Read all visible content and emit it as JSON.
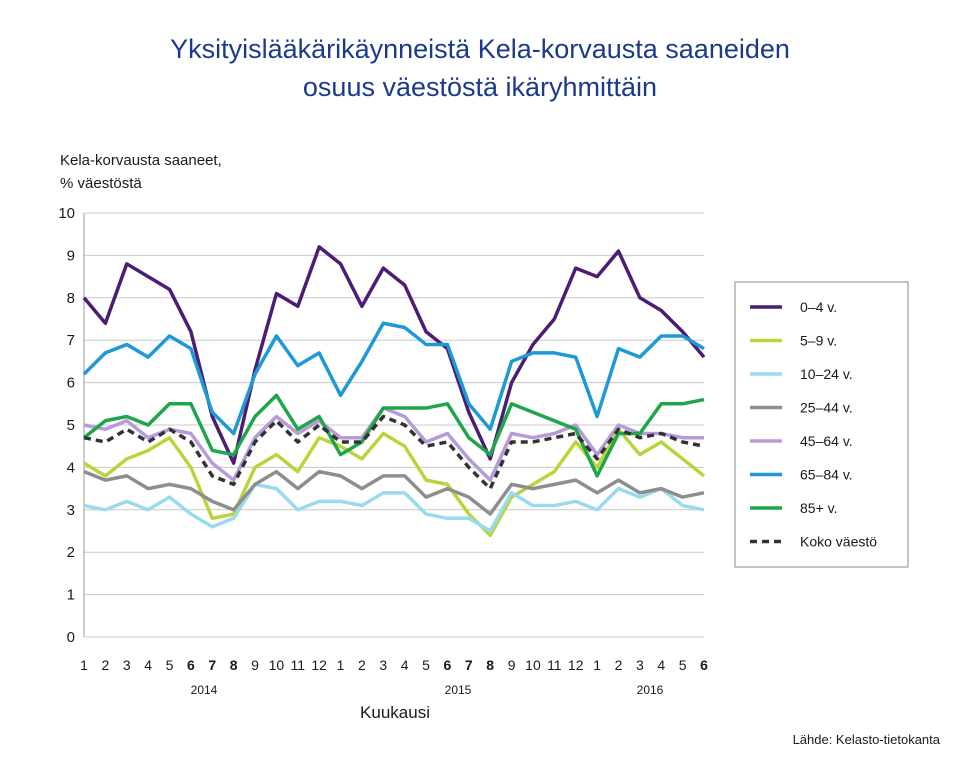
{
  "chart_data": {
    "type": "line",
    "title": [
      "Yksityislääkärikäynneistä Kela-korvausta saaneiden",
      "osuus väestöstä ikäryhmittäin"
    ],
    "y_label": [
      "Kela-korvausta saaneet,",
      "% väestöstä"
    ],
    "x_label": "Kuukausi",
    "source": "Lähde: Kelasto-tietokanta",
    "year_labels": [
      "2014",
      "2015",
      "2016"
    ],
    "categories": [
      "1",
      "2",
      "3",
      "4",
      "5",
      "6",
      "7",
      "8",
      "9",
      "10",
      "11",
      "12",
      "1",
      "2",
      "3",
      "4",
      "5",
      "6",
      "7",
      "8",
      "9",
      "10",
      "11",
      "12",
      "1",
      "2",
      "3",
      "4",
      "5",
      "6"
    ],
    "ylim": [
      0,
      10
    ],
    "yticks": [
      0,
      1,
      2,
      3,
      4,
      5,
      6,
      7,
      8,
      9,
      10
    ],
    "grid": true,
    "series": [
      {
        "name": "0–4 v.",
        "color": "#4b1d74",
        "values": [
          8.0,
          7.4,
          8.8,
          8.5,
          8.2,
          7.2,
          5.2,
          4.1,
          6.3,
          8.1,
          7.8,
          9.2,
          8.8,
          7.8,
          8.7,
          8.3,
          7.2,
          6.8,
          5.3,
          4.2,
          6.0,
          6.9,
          7.5,
          8.7,
          8.5,
          9.1,
          8.0,
          7.7,
          7.2,
          6.6
        ]
      },
      {
        "name": "5–9 v.",
        "color": "#bcd43c",
        "values": [
          4.1,
          3.8,
          4.2,
          4.4,
          4.7,
          4.0,
          2.8,
          2.9,
          4.0,
          4.3,
          3.9,
          4.7,
          4.5,
          4.2,
          4.8,
          4.5,
          3.7,
          3.6,
          2.9,
          2.4,
          3.3,
          3.6,
          3.9,
          4.6,
          4.0,
          4.9,
          4.3,
          4.6,
          4.2,
          3.8
        ]
      },
      {
        "name": "10–24 v.",
        "color": "#99dbee",
        "values": [
          3.1,
          3.0,
          3.2,
          3.0,
          3.3,
          2.9,
          2.6,
          2.8,
          3.6,
          3.5,
          3.0,
          3.2,
          3.2,
          3.1,
          3.4,
          3.4,
          2.9,
          2.8,
          2.8,
          2.5,
          3.4,
          3.1,
          3.1,
          3.2,
          3.0,
          3.5,
          3.3,
          3.5,
          3.1,
          3.0
        ]
      },
      {
        "name": "25–44 v.",
        "color": "#8e8e8e",
        "values": [
          3.9,
          3.7,
          3.8,
          3.5,
          3.6,
          3.5,
          3.2,
          3.0,
          3.6,
          3.9,
          3.5,
          3.9,
          3.8,
          3.5,
          3.8,
          3.8,
          3.3,
          3.5,
          3.3,
          2.9,
          3.6,
          3.5,
          3.6,
          3.7,
          3.4,
          3.7,
          3.4,
          3.5,
          3.3,
          3.4
        ]
      },
      {
        "name": "45–64 v.",
        "color": "#b79ad8",
        "values": [
          5.0,
          4.9,
          5.1,
          4.7,
          4.9,
          4.8,
          4.1,
          3.7,
          4.7,
          5.2,
          4.8,
          5.1,
          4.7,
          4.7,
          5.4,
          5.2,
          4.6,
          4.8,
          4.2,
          3.7,
          4.8,
          4.7,
          4.8,
          5.0,
          4.3,
          5.0,
          4.8,
          4.8,
          4.7,
          4.7
        ]
      },
      {
        "name": "65–84 v.",
        "color": "#1d9ad6",
        "values": [
          6.2,
          6.7,
          6.9,
          6.6,
          7.1,
          6.8,
          5.3,
          4.8,
          6.2,
          7.1,
          6.4,
          6.7,
          5.7,
          6.5,
          7.4,
          7.3,
          6.9,
          6.9,
          5.5,
          4.9,
          6.5,
          6.7,
          6.7,
          6.6,
          5.2,
          6.8,
          6.6,
          7.1,
          7.1,
          6.8
        ]
      },
      {
        "name": "85+ v.",
        "color": "#1fa64a",
        "values": [
          4.7,
          5.1,
          5.2,
          5.0,
          5.5,
          5.5,
          4.4,
          4.3,
          5.2,
          5.7,
          4.9,
          5.2,
          4.3,
          4.6,
          5.4,
          5.4,
          5.4,
          5.5,
          4.7,
          4.3,
          5.5,
          5.3,
          5.1,
          4.9,
          3.8,
          4.8,
          4.8,
          5.5,
          5.5,
          5.6
        ]
      },
      {
        "name": "Koko väestö",
        "color": "#333333",
        "dashed": true,
        "values": [
          4.7,
          4.6,
          4.9,
          4.6,
          4.9,
          4.6,
          3.8,
          3.6,
          4.6,
          5.1,
          4.6,
          5.0,
          4.6,
          4.6,
          5.2,
          5.0,
          4.5,
          4.6,
          4.0,
          3.5,
          4.6,
          4.6,
          4.7,
          4.8,
          4.2,
          4.9,
          4.7,
          4.8,
          4.6,
          4.5
        ]
      }
    ]
  }
}
